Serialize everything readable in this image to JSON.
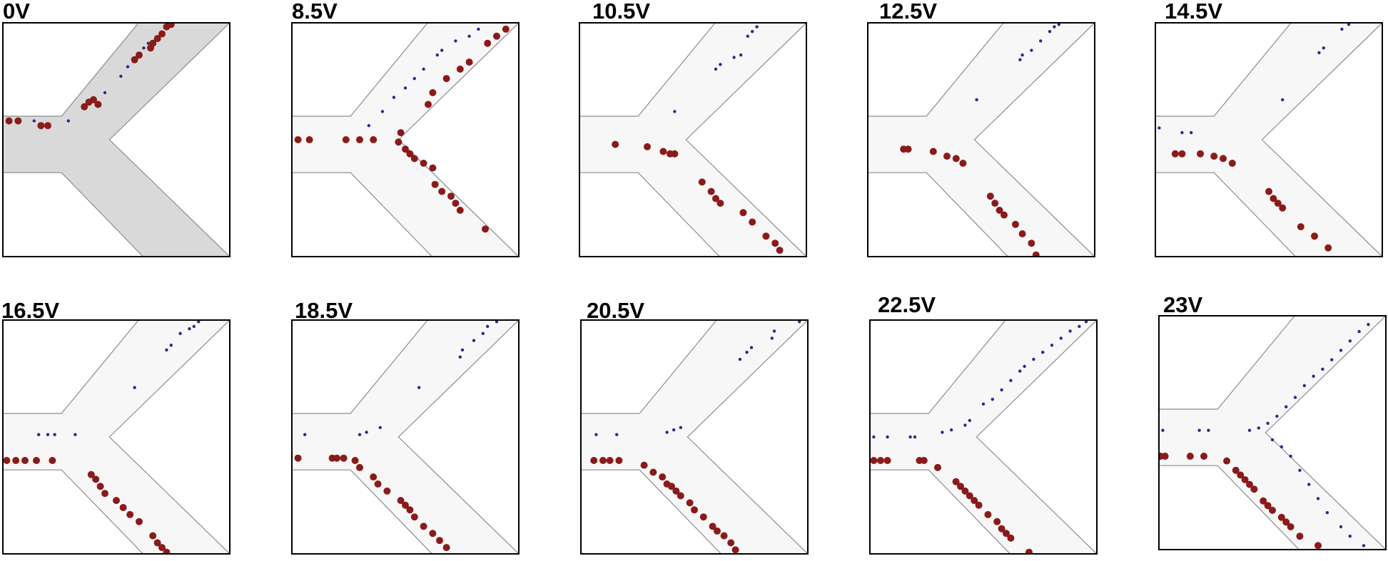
{
  "colors": {
    "channel_outline": "#8c8c8c",
    "channel_fill_grey": "#d9d9d9",
    "channel_fill_light": "#f7f7f7",
    "large_particle": "#8b1a1a",
    "small_particle": "#2a2a8c",
    "frame": "#000000"
  },
  "panels": [
    {
      "label": "0V",
      "channel_tone": "grey"
    },
    {
      "label": "8.5V",
      "channel_tone": "light"
    },
    {
      "label": "10.5V",
      "channel_tone": "light"
    },
    {
      "label": "12.5V",
      "channel_tone": "light"
    },
    {
      "label": "14.5V",
      "channel_tone": "light"
    },
    {
      "label": "16.5V",
      "channel_tone": "light"
    },
    {
      "label": "18.5V",
      "channel_tone": "light"
    },
    {
      "label": "20.5V",
      "channel_tone": "light"
    },
    {
      "label": "22.5V",
      "channel_tone": "light"
    },
    {
      "label": "23V",
      "channel_tone": "light"
    }
  ]
}
